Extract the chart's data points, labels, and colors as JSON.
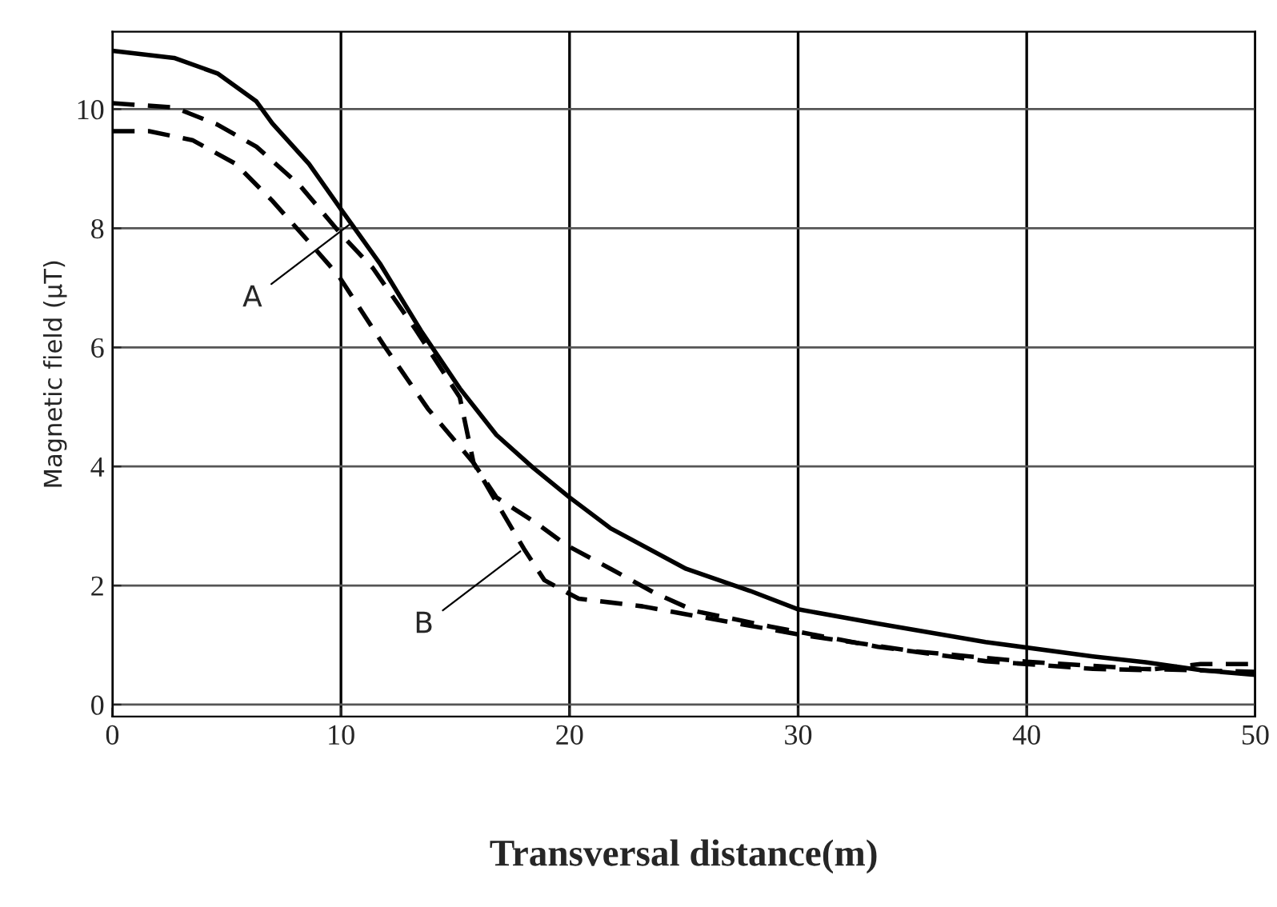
{
  "chart_data": {
    "type": "line",
    "xlabel": "Transversal distance(m)",
    "ylabel": "Magnetic field (µT)",
    "xlim": [
      0,
      50
    ],
    "ylim": [
      -0.2,
      11.3
    ],
    "xticks": [
      0,
      10,
      20,
      30,
      40,
      50
    ],
    "yticks": [
      0,
      2,
      4,
      6,
      8,
      10
    ],
    "grid": true,
    "marker": "none",
    "series": [
      {
        "color": "#000000",
        "line_style": "solid",
        "x": [
          0,
          2.7,
          4.6,
          6.3,
          7.0,
          8.6,
          10,
          11.7,
          13.5,
          15.2,
          16.8,
          18.4,
          20,
          21.8,
          25.1,
          27.9,
          30,
          33.5,
          38.2,
          42.9,
          45.2,
          47.6,
          50
        ],
        "values": [
          10.98,
          10.86,
          10.6,
          10.13,
          9.76,
          9.08,
          8.32,
          7.41,
          6.28,
          5.31,
          4.53,
          3.98,
          3.48,
          2.96,
          2.28,
          1.91,
          1.6,
          1.36,
          1.05,
          0.81,
          0.71,
          0.58,
          0.5
        ]
      },
      {
        "color": "#000000",
        "line_style": "dashed",
        "x": [
          0,
          2.7,
          4.6,
          6.3,
          8.2,
          10,
          11.4,
          13.3,
          15.2,
          15.8,
          16.8,
          18.5,
          19.9,
          21.8,
          23.7,
          25.5,
          28.8,
          33.5,
          38.2,
          42.9,
          45.2,
          47.6,
          50
        ],
        "values": [
          10.1,
          10.03,
          9.74,
          9.37,
          8.72,
          7.9,
          7.33,
          6.28,
          5.16,
          4.06,
          3.48,
          3.06,
          2.67,
          2.28,
          1.88,
          1.57,
          1.31,
          0.97,
          0.73,
          0.6,
          0.58,
          0.68,
          0.68
        ]
      },
      {
        "color": "#000000",
        "line_style": "dashed",
        "x": [
          0,
          1.6,
          3.5,
          5.4,
          7.0,
          8.6,
          9.9,
          11.9,
          13.8,
          15.8,
          16.8,
          18.0,
          18.9,
          19.9,
          20.4,
          23.2,
          25.5,
          30,
          35,
          40,
          45,
          50
        ],
        "values": [
          9.63,
          9.63,
          9.48,
          9.08,
          8.46,
          7.77,
          7.2,
          6.02,
          4.97,
          4.06,
          3.4,
          2.62,
          2.09,
          1.88,
          1.78,
          1.65,
          1.49,
          1.18,
          0.9,
          0.72,
          0.6,
          0.55
        ]
      }
    ],
    "annotations": [
      {
        "text": "A",
        "x": 10.5,
        "y": 8.1
      },
      {
        "text": "B",
        "x": 18.0,
        "y": 2.62
      }
    ]
  }
}
